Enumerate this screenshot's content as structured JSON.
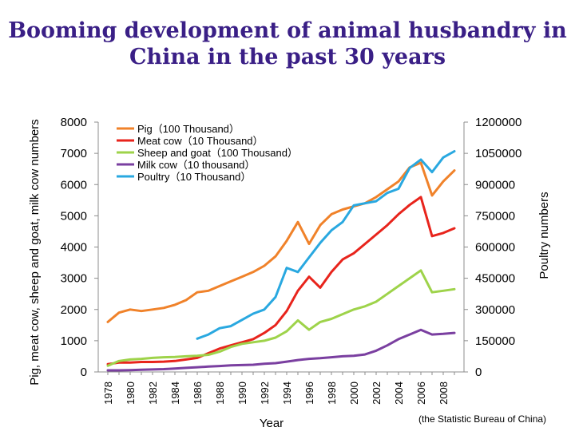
{
  "title_line1": "Booming development of animal husbandry in",
  "title_line2": "China in the past 30 years",
  "source_note": "(the Statistic Bureau of China)",
  "chart_data": {
    "type": "line",
    "xlabel": "Year",
    "ylabel_left": "Pig, meat cow, sheep and goat, milk cow numbers",
    "ylabel_right": "Poultry numbers",
    "ylim_left": [
      0,
      8000
    ],
    "ylim_right": [
      0,
      1200000
    ],
    "yticks_left": [
      "0",
      "1000",
      "2000",
      "3000",
      "4000",
      "5000",
      "6000",
      "7000",
      "8000"
    ],
    "yticks_right": [
      "0",
      "150000",
      "300000",
      "450000",
      "600000",
      "750000",
      "900000",
      "1050000",
      "1200000"
    ],
    "x_ticks": [
      "1978",
      "1980",
      "1982",
      "1984",
      "1986",
      "1988",
      "1990",
      "1992",
      "1994",
      "1996",
      "1998",
      "2000",
      "2002",
      "2004",
      "2006",
      "2008"
    ],
    "x": [
      1978,
      1979,
      1980,
      1981,
      1982,
      1983,
      1984,
      1985,
      1986,
      1987,
      1988,
      1989,
      1990,
      1991,
      1992,
      1993,
      1994,
      1995,
      1996,
      1997,
      1998,
      1999,
      2000,
      2001,
      2002,
      2003,
      2004,
      2005,
      2006,
      2007,
      2008,
      2009
    ],
    "legend_position": "top-left",
    "grid": false,
    "series": [
      {
        "name": "Pig（100 Thousand）",
        "color": "#f0822a",
        "axis": "left",
        "values": [
          1600,
          1900,
          2000,
          1950,
          2000,
          2050,
          2150,
          2300,
          2550,
          2600,
          2750,
          2900,
          3050,
          3200,
          3400,
          3700,
          4200,
          4800,
          4100,
          4700,
          5050,
          5200,
          5300,
          5400,
          5600,
          5850,
          6100,
          6550,
          6700,
          5650,
          6100,
          6450
        ]
      },
      {
        "name": "Meat cow（10 Thousand）",
        "color": "#e8241c",
        "axis": "left",
        "values": [
          250,
          300,
          300,
          320,
          320,
          330,
          350,
          400,
          450,
          600,
          750,
          850,
          950,
          1050,
          1250,
          1500,
          1950,
          2600,
          3050,
          2700,
          3200,
          3600,
          3800,
          4100,
          4400,
          4700,
          5050,
          5350,
          5600,
          4350,
          4450,
          4600
        ]
      },
      {
        "name": "Sheep and goat（100 Thousand）",
        "color": "#9ed34a",
        "axis": "left",
        "values": [
          200,
          350,
          400,
          420,
          450,
          470,
          480,
          500,
          520,
          550,
          650,
          800,
          900,
          950,
          1000,
          1100,
          1300,
          1650,
          1350,
          1600,
          1700,
          1850,
          2000,
          2100,
          2250,
          2500,
          2750,
          3000,
          3250,
          2550,
          2600,
          2650
        ]
      },
      {
        "name": "Milk cow（10 thousand）",
        "color": "#7a3fa0",
        "axis": "left",
        "values": [
          50,
          50,
          60,
          70,
          80,
          90,
          110,
          130,
          150,
          170,
          190,
          210,
          220,
          230,
          260,
          280,
          330,
          380,
          420,
          440,
          470,
          500,
          520,
          560,
          680,
          850,
          1050,
          1200,
          1350,
          1200,
          1220,
          1250
        ]
      },
      {
        "name": "Poultry（10 Thousand）",
        "color": "#29a8e0",
        "axis": "right",
        "values": [
          null,
          null,
          null,
          null,
          null,
          null,
          null,
          null,
          160000,
          180000,
          210000,
          220000,
          250000,
          280000,
          300000,
          360000,
          500000,
          480000,
          550000,
          620000,
          680000,
          720000,
          800000,
          810000,
          820000,
          860000,
          880000,
          980000,
          1020000,
          960000,
          1030000,
          1060000
        ]
      }
    ]
  }
}
